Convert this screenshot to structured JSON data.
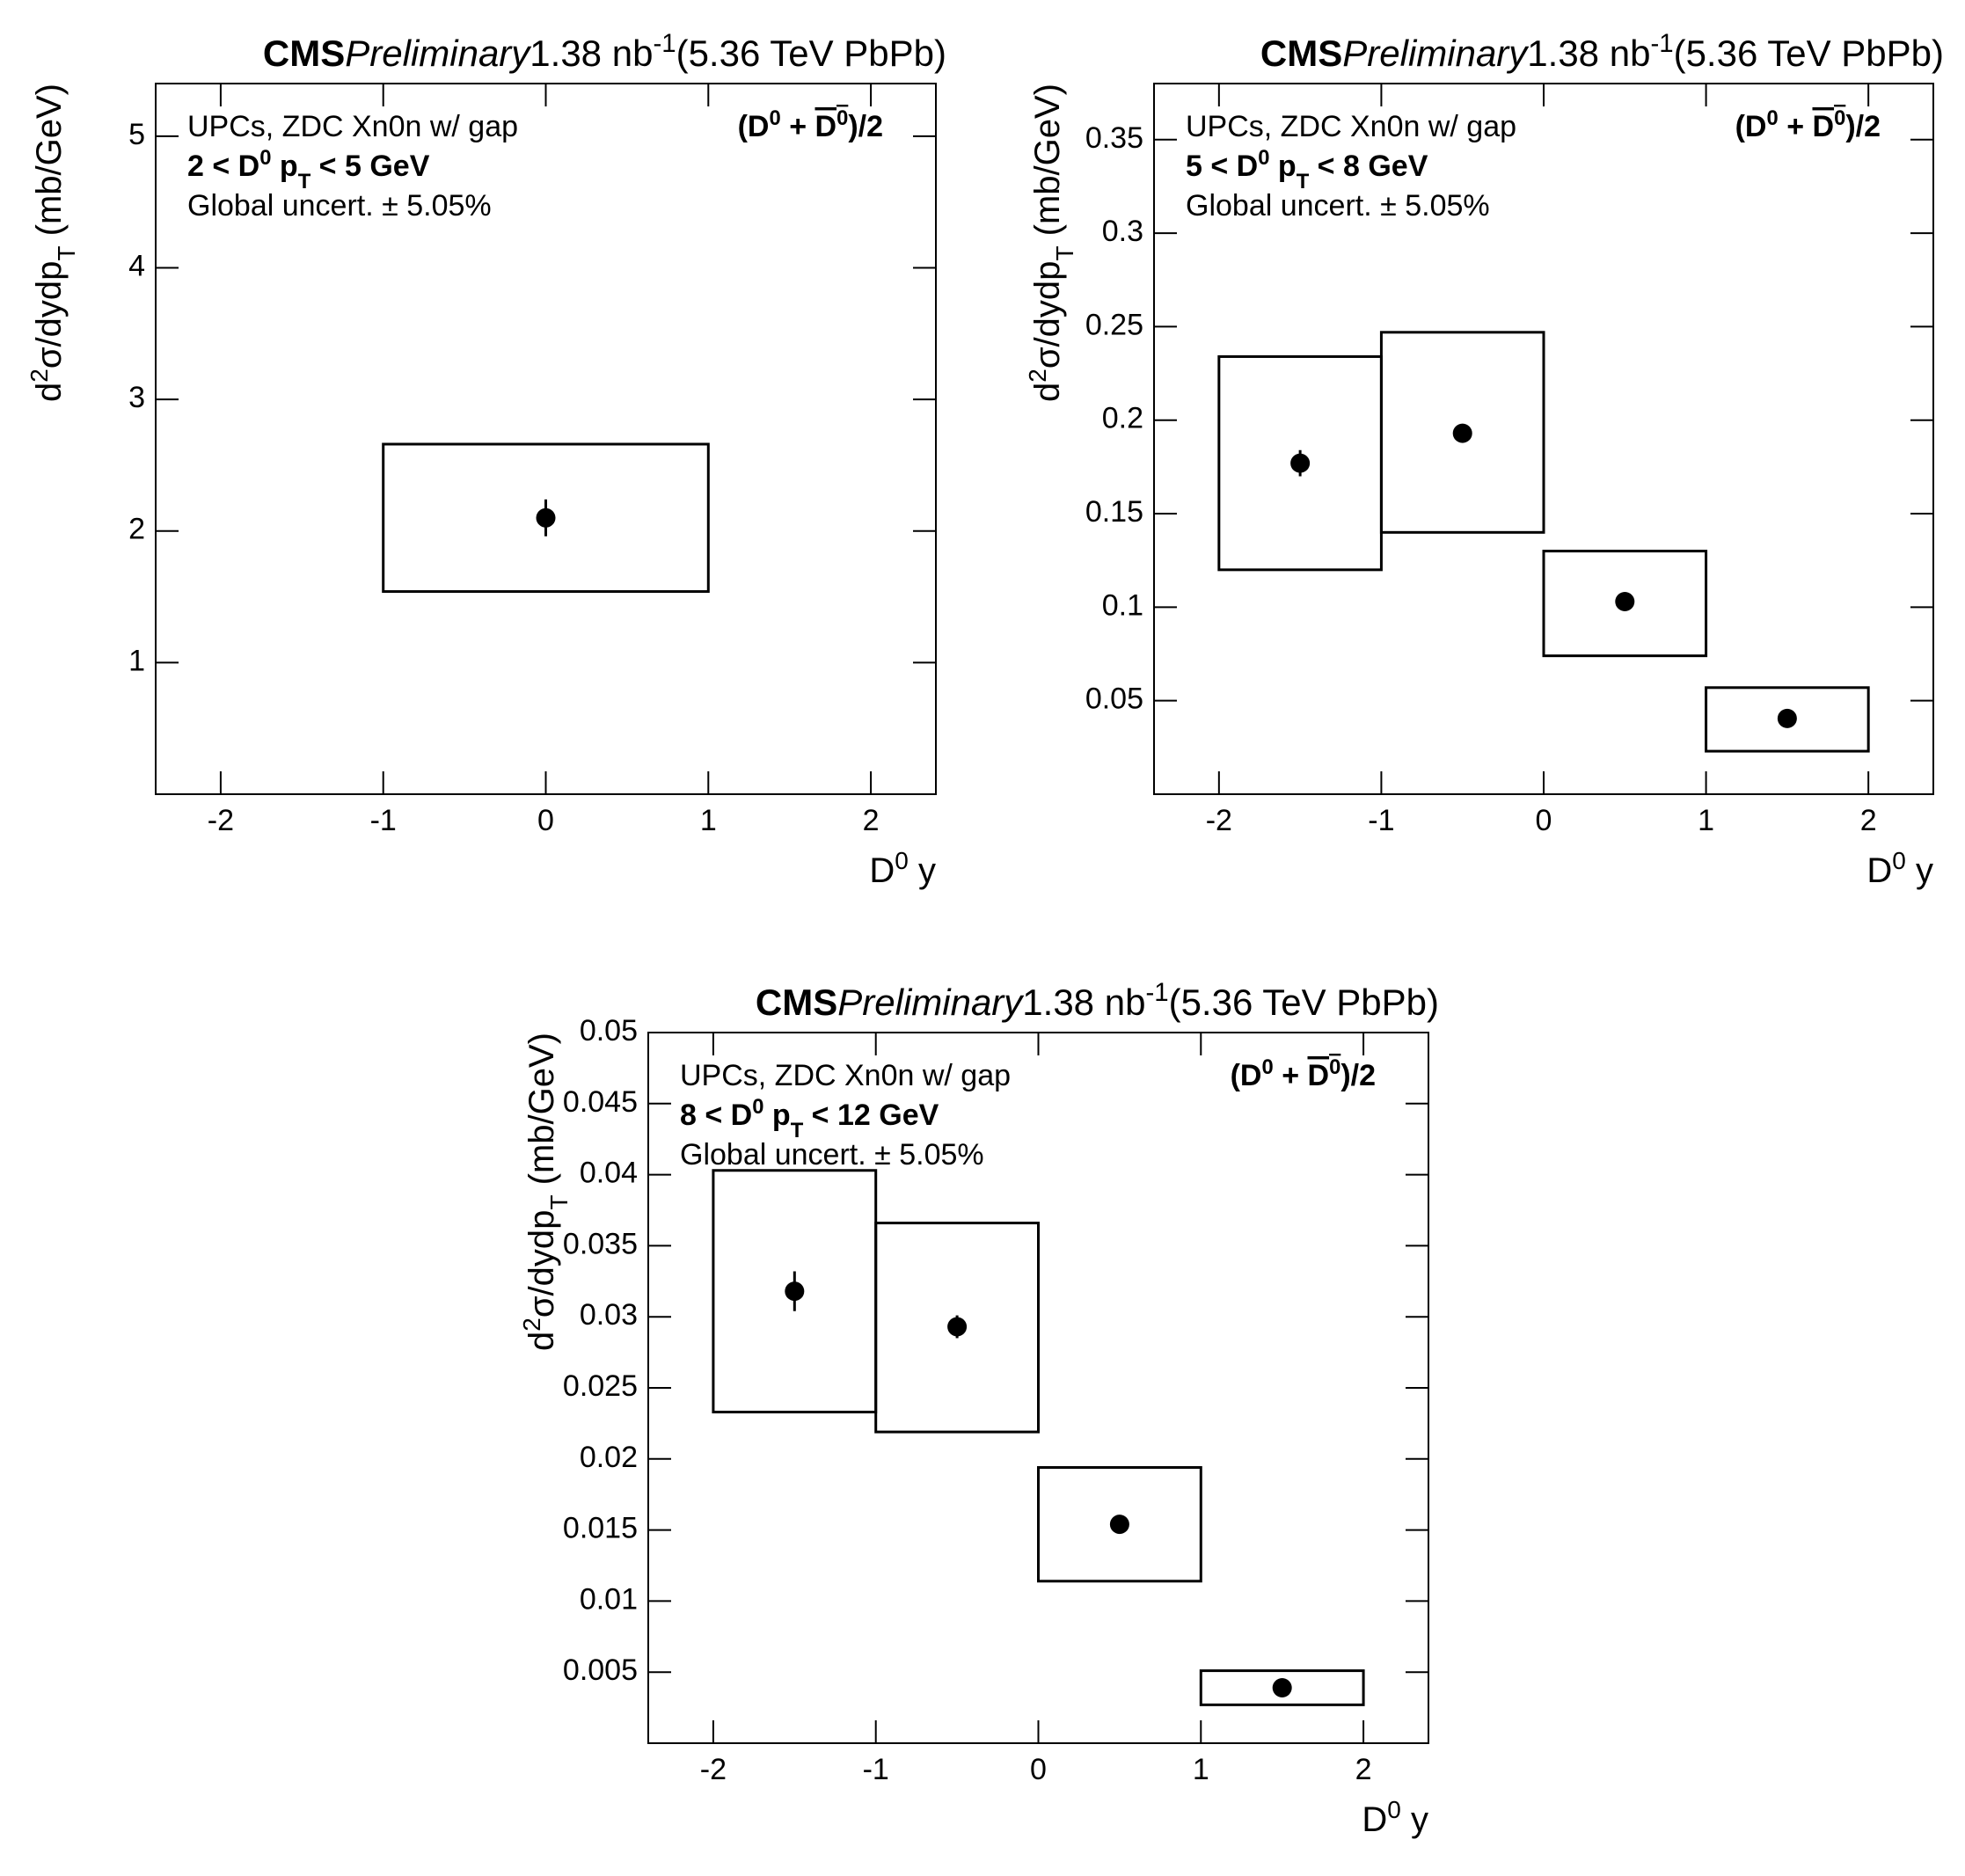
{
  "chart_data": [
    {
      "type": "errorbar",
      "title": {
        "experiment": "CMS",
        "status": "Preliminary",
        "luminosity": "1.38 nb",
        "luminosity_exponent": "-1",
        "energy": "(5.36 TeV PbPb)"
      },
      "annotations": {
        "selection": "UPCs, ZDC Xn0n w/ gap",
        "pt_range": [
          "2 < D",
          "0",
          " p",
          "T",
          " < 5 GeV"
        ],
        "global_uncertainty": "Global uncert. ± 5.05%",
        "species": [
          "(D",
          "0",
          " + ",
          "D",
          "0",
          ")/2"
        ]
      },
      "y_label": [
        "d",
        "2",
        "σ/dydp",
        "T",
        " (mb/GeV)"
      ],
      "x_label": [
        "D",
        "0",
        " y"
      ],
      "x": [
        0
      ],
      "values": [
        2.1
      ],
      "errors": [
        0.14
      ],
      "sys_low": [
        1.54
      ],
      "sys_high": [
        2.66
      ],
      "bins": [
        -1,
        1
      ],
      "xlim": [
        -2.4,
        2.4
      ],
      "ylim": [
        0,
        5.4
      ],
      "xticks": [
        -2,
        -1,
        0,
        1,
        2
      ],
      "yticks": [
        1,
        2,
        3,
        4,
        5
      ],
      "color": "#000000"
    },
    {
      "type": "errorbar",
      "title": {
        "experiment": "CMS",
        "status": "Preliminary",
        "luminosity": "1.38 nb",
        "luminosity_exponent": "-1",
        "energy": "(5.36 TeV PbPb)"
      },
      "annotations": {
        "selection": "UPCs, ZDC Xn0n w/ gap",
        "pt_range": [
          "5 < D",
          "0",
          " p",
          "T",
          " < 8 GeV"
        ],
        "global_uncertainty": "Global uncert. ± 5.05%",
        "species": [
          "(D",
          "0",
          " + ",
          "D",
          "0",
          ")/2"
        ]
      },
      "y_label": [
        "d",
        "2",
        "σ/dydp",
        "T",
        " (mb/GeV)"
      ],
      "x_label": [
        "D",
        "0",
        " y"
      ],
      "x": [
        -1.5,
        -0.5,
        0.5,
        1.5
      ],
      "values": [
        0.177,
        0.193,
        0.103,
        0.0405
      ],
      "errors": [
        0.007,
        0.003,
        0.002,
        0.001
      ],
      "sys_low": [
        0.12,
        0.14,
        0.074,
        0.023
      ],
      "sys_high": [
        0.234,
        0.247,
        0.13,
        0.057
      ],
      "bins": [
        -2,
        -1,
        0,
        1,
        2
      ],
      "xlim": [
        -2.4,
        2.4
      ],
      "ylim": [
        0,
        0.38
      ],
      "xticks": [
        -2,
        -1,
        0,
        1,
        2
      ],
      "yticks": [
        0.05,
        0.1,
        0.15,
        0.2,
        0.25,
        0.3,
        0.35
      ],
      "color": "#000000"
    },
    {
      "type": "errorbar",
      "title": {
        "experiment": "CMS",
        "status": "Preliminary",
        "luminosity": "1.38 nb",
        "luminosity_exponent": "-1",
        "energy": "(5.36 TeV PbPb)"
      },
      "annotations": {
        "selection": "UPCs, ZDC Xn0n w/ gap",
        "pt_range": [
          "8 < D",
          "0",
          " p",
          "T",
          " < 12 GeV"
        ],
        "global_uncertainty": "Global uncert. ± 5.05%",
        "species": [
          "(D",
          "0",
          " + ",
          "D",
          "0",
          ")/2"
        ]
      },
      "y_label": [
        "d",
        "2",
        "σ/dydp",
        "T",
        " (mb/GeV)"
      ],
      "x_label": [
        "D",
        "0",
        " y"
      ],
      "x": [
        -1.5,
        -0.5,
        0.5,
        1.5
      ],
      "values": [
        0.0318,
        0.0293,
        0.0154,
        0.0039
      ],
      "errors": [
        0.0014,
        0.0008,
        0.0003,
        0.0002
      ],
      "sys_low": [
        0.0233,
        0.0219,
        0.0114,
        0.0027
      ],
      "sys_high": [
        0.0403,
        0.0366,
        0.0194,
        0.0051
      ],
      "bins": [
        -2,
        -1,
        0,
        1,
        2
      ],
      "xlim": [
        -2.4,
        2.4
      ],
      "ylim": [
        0,
        0.05
      ],
      "xticks": [
        -2,
        -1,
        0,
        1,
        2
      ],
      "yticks": [
        0.005,
        0.01,
        0.015,
        0.02,
        0.025,
        0.03,
        0.035,
        0.04,
        0.045,
        0.05
      ],
      "color": "#000000"
    }
  ]
}
